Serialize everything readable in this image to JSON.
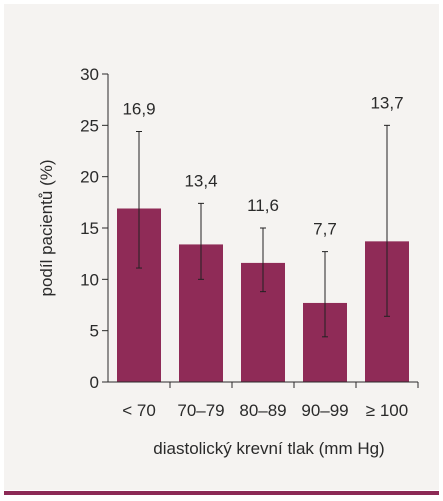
{
  "colors": {
    "bar": "#8f2b57",
    "panel_background": "#f5f3f1",
    "rule": "#8c2a56",
    "axis": "#2a2a2a"
  },
  "chart_data": {
    "type": "bar",
    "categories": [
      "< 70",
      "70–79",
      "80–89",
      "90–99",
      "≥ 100"
    ],
    "series": [
      {
        "values": [
          16.9,
          13.4,
          11.6,
          7.7,
          13.7
        ],
        "error_low": [
          11.1,
          10.0,
          8.8,
          4.4,
          6.4
        ],
        "error_high": [
          24.4,
          17.4,
          15.0,
          12.7,
          25.0
        ]
      }
    ],
    "value_labels": [
      "16,9",
      "13,4",
      "11,6",
      "7,7",
      "13,7"
    ],
    "y_ticks": [
      0,
      5,
      10,
      15,
      20,
      25,
      30
    ],
    "ylim": [
      0,
      30
    ],
    "xlabel": "diastolický krevní tlak (mm Hg)",
    "ylabel": "podíl pacientů (%)",
    "title": "",
    "grid": false,
    "legend": "none"
  }
}
